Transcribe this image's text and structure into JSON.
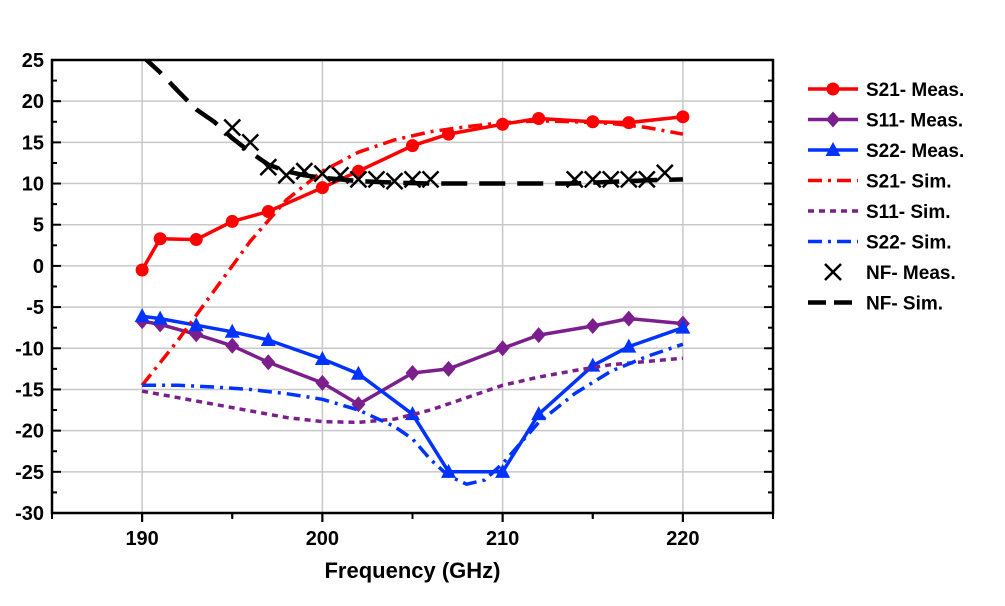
{
  "chart_data": {
    "type": "line",
    "xlabel": "Frequency (GHz)",
    "ylabel": "",
    "title": "",
    "xlim": [
      185,
      225
    ],
    "ylim": [
      -30,
      25
    ],
    "xticks": [
      190,
      200,
      210,
      220
    ],
    "yticks": [
      -30,
      -25,
      -20,
      -15,
      -10,
      -5,
      0,
      5,
      10,
      15,
      20,
      25
    ],
    "grid": true,
    "legend_position": "right",
    "series": [
      {
        "name": "S21- Meas.",
        "color": "#ff0000",
        "line": "solid",
        "marker": "circle",
        "x": [
          190,
          191,
          193,
          195,
          197,
          200,
          202,
          205,
          207,
          210,
          212,
          215,
          217,
          220
        ],
        "y": [
          -0.5,
          3.3,
          3.2,
          5.4,
          6.6,
          9.5,
          11.5,
          14.6,
          16.0,
          17.2,
          17.9,
          17.5,
          17.4,
          18.1
        ]
      },
      {
        "name": "S11- Meas.",
        "color": "#7b1f8c",
        "line": "solid",
        "marker": "diamond",
        "x": [
          190,
          191,
          193,
          195,
          197,
          200,
          202,
          205,
          207,
          210,
          212,
          215,
          217,
          220
        ],
        "y": [
          -6.7,
          -7.1,
          -8.3,
          -9.7,
          -11.7,
          -14.2,
          -16.8,
          -13.0,
          -12.5,
          -10.0,
          -8.4,
          -7.3,
          -6.4,
          -7.0
        ]
      },
      {
        "name": "S22- Meas.",
        "color": "#0033ff",
        "line": "solid",
        "marker": "triangle",
        "x": [
          190,
          191,
          193,
          195,
          197,
          200,
          202,
          205,
          207,
          210,
          212,
          215,
          217,
          220
        ],
        "y": [
          -6.1,
          -6.4,
          -7.2,
          -8.0,
          -9.0,
          -11.3,
          -13.1,
          -18.0,
          -25.0,
          -25.0,
          -18.0,
          -12.1,
          -9.8,
          -7.5
        ]
      },
      {
        "name": "S21- Sim.",
        "color": "#ff0000",
        "line": "dashdot",
        "marker": "none",
        "x": [
          190,
          192,
          194,
          196,
          198,
          200,
          202,
          204,
          206,
          208,
          210,
          212,
          214,
          216,
          218,
          220
        ],
        "y": [
          -14.5,
          -9.0,
          -3.0,
          3.0,
          8.0,
          11.5,
          13.8,
          15.3,
          16.3,
          16.9,
          17.4,
          17.6,
          17.5,
          17.3,
          16.8,
          16.0
        ]
      },
      {
        "name": "S11- Sim.",
        "color": "#7b1f8c",
        "line": "dotted",
        "marker": "none",
        "x": [
          190,
          192,
          194,
          196,
          198,
          200,
          202,
          204,
          206,
          208,
          210,
          212,
          214,
          216,
          218,
          220
        ],
        "y": [
          -15.2,
          -16.0,
          -16.8,
          -17.6,
          -18.4,
          -18.9,
          -19.0,
          -18.6,
          -17.5,
          -16.0,
          -14.5,
          -13.5,
          -12.7,
          -12.0,
          -11.6,
          -11.2
        ]
      },
      {
        "name": "S22- Sim.",
        "color": "#0033ff",
        "line": "dashdot",
        "marker": "none",
        "x": [
          190,
          192,
          194,
          196,
          198,
          200,
          202,
          204,
          205,
          206,
          207,
          208,
          209,
          210,
          212,
          214,
          216,
          218,
          220
        ],
        "y": [
          -14.5,
          -14.5,
          -14.7,
          -15.0,
          -15.5,
          -16.2,
          -17.5,
          -19.5,
          -21.0,
          -23.5,
          -25.5,
          -26.5,
          -26.0,
          -24.0,
          -19.0,
          -15.5,
          -12.8,
          -11.0,
          -9.5
        ]
      },
      {
        "name": "NF- Meas.",
        "color": "#000000",
        "line": "none",
        "marker": "cross",
        "x": [
          195,
          196,
          197,
          198,
          199,
          200,
          201,
          202,
          203,
          204,
          205,
          206,
          214,
          215,
          216,
          217,
          218,
          219
        ],
        "y": [
          16.8,
          15.0,
          12.0,
          11.0,
          11.5,
          11.2,
          11.0,
          10.5,
          10.5,
          10.3,
          10.5,
          10.5,
          10.5,
          10.5,
          10.5,
          10.5,
          10.5,
          11.3
        ]
      },
      {
        "name": "NF- Sim.",
        "color": "#000000",
        "line": "dashed",
        "marker": "none",
        "x": [
          190,
          191,
          192,
          193,
          194,
          195,
          196,
          197,
          198,
          199,
          200,
          201,
          202,
          204,
          206,
          208,
          210,
          212,
          214,
          216,
          218,
          220
        ],
        "y": [
          25.5,
          23.5,
          21.2,
          19.0,
          17.5,
          15.5,
          13.8,
          12.3,
          11.5,
          11.0,
          10.7,
          10.5,
          10.3,
          10.1,
          10.0,
          10.0,
          10.0,
          10.0,
          10.0,
          10.2,
          10.4,
          10.5
        ]
      }
    ]
  }
}
